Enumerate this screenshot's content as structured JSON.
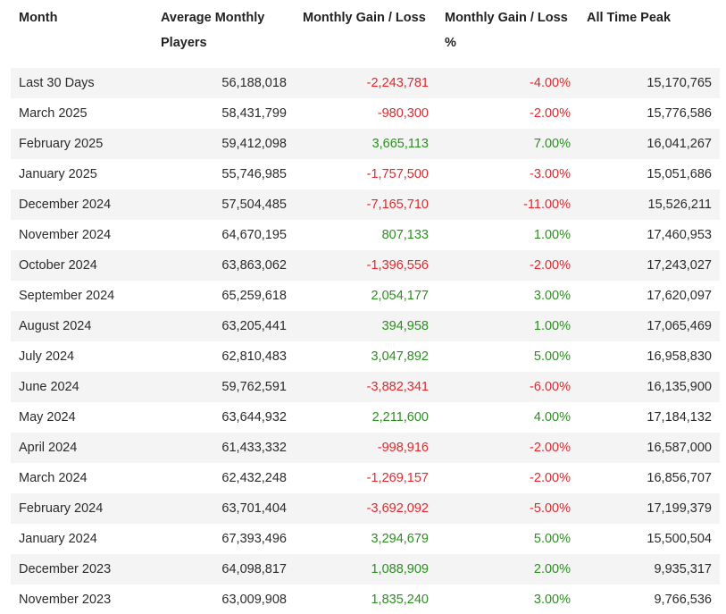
{
  "headers": {
    "month": "Month",
    "avg_players": "Average Monthly Players",
    "gain_loss": "Monthly Gain / Loss",
    "gain_loss_pct": "Monthly Gain / Loss %",
    "all_time_peak": "All Time Peak"
  },
  "colors": {
    "negative": "#e8262b",
    "positive": "#2a8f1f",
    "stripe": "#f4f4f4"
  },
  "rows": [
    {
      "month": "Last 30 Days",
      "avg": "56,188,018",
      "gain": "-2,243,781",
      "pct": "-4.00%",
      "peak": "15,170,765",
      "trend": "neg"
    },
    {
      "month": "March 2025",
      "avg": "58,431,799",
      "gain": "-980,300",
      "pct": "-2.00%",
      "peak": "15,776,586",
      "trend": "neg"
    },
    {
      "month": "February 2025",
      "avg": "59,412,098",
      "gain": "3,665,113",
      "pct": "7.00%",
      "peak": "16,041,267",
      "trend": "pos"
    },
    {
      "month": "January 2025",
      "avg": "55,746,985",
      "gain": "-1,757,500",
      "pct": "-3.00%",
      "peak": "15,051,686",
      "trend": "neg"
    },
    {
      "month": "December 2024",
      "avg": "57,504,485",
      "gain": "-7,165,710",
      "pct": "-11.00%",
      "peak": "15,526,211",
      "trend": "neg"
    },
    {
      "month": "November 2024",
      "avg": "64,670,195",
      "gain": "807,133",
      "pct": "1.00%",
      "peak": "17,460,953",
      "trend": "pos"
    },
    {
      "month": "October 2024",
      "avg": "63,863,062",
      "gain": "-1,396,556",
      "pct": "-2.00%",
      "peak": "17,243,027",
      "trend": "neg"
    },
    {
      "month": "September 2024",
      "avg": "65,259,618",
      "gain": "2,054,177",
      "pct": "3.00%",
      "peak": "17,620,097",
      "trend": "pos"
    },
    {
      "month": "August 2024",
      "avg": "63,205,441",
      "gain": "394,958",
      "pct": "1.00%",
      "peak": "17,065,469",
      "trend": "pos"
    },
    {
      "month": "July 2024",
      "avg": "62,810,483",
      "gain": "3,047,892",
      "pct": "5.00%",
      "peak": "16,958,830",
      "trend": "pos"
    },
    {
      "month": "June 2024",
      "avg": "59,762,591",
      "gain": "-3,882,341",
      "pct": "-6.00%",
      "peak": "16,135,900",
      "trend": "neg"
    },
    {
      "month": "May 2024",
      "avg": "63,644,932",
      "gain": "2,211,600",
      "pct": "4.00%",
      "peak": "17,184,132",
      "trend": "pos"
    },
    {
      "month": "April 2024",
      "avg": "61,433,332",
      "gain": "-998,916",
      "pct": "-2.00%",
      "peak": "16,587,000",
      "trend": "neg"
    },
    {
      "month": "March 2024",
      "avg": "62,432,248",
      "gain": "-1,269,157",
      "pct": "-2.00%",
      "peak": "16,856,707",
      "trend": "neg"
    },
    {
      "month": "February 2024",
      "avg": "63,701,404",
      "gain": "-3,692,092",
      "pct": "-5.00%",
      "peak": "17,199,379",
      "trend": "neg"
    },
    {
      "month": "January 2024",
      "avg": "67,393,496",
      "gain": "3,294,679",
      "pct": "5.00%",
      "peak": "15,500,504",
      "trend": "pos"
    },
    {
      "month": "December 2023",
      "avg": "64,098,817",
      "gain": "1,088,909",
      "pct": "2.00%",
      "peak": "9,935,317",
      "trend": "pos"
    },
    {
      "month": "November 2023",
      "avg": "63,009,908",
      "gain": "1,835,240",
      "pct": "3.00%",
      "peak": "9,766,536",
      "trend": "pos"
    }
  ]
}
